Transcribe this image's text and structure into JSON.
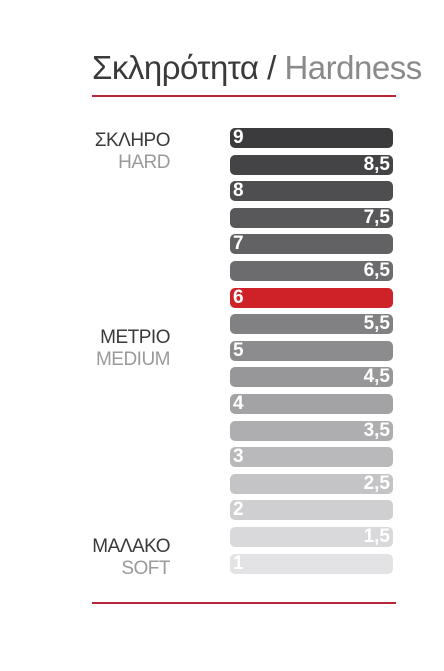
{
  "title": {
    "greek": "Σκληρότητα",
    "separator": "/",
    "latin": "Hardness"
  },
  "labels": {
    "hard": {
      "greek": "ΣΚΛΗΡΟ",
      "latin": "HARD"
    },
    "medium": {
      "greek": "ΜΕΤΡΙΟ",
      "latin": "MEDIUM"
    },
    "soft": {
      "greek": "ΜΑΛΑΚΟ",
      "latin": "SOFT"
    }
  },
  "chart_data": {
    "type": "table",
    "levels": [
      {
        "value": "9",
        "align": "left",
        "color": "#3b3b3d"
      },
      {
        "value": "8,5",
        "align": "right",
        "color": "#444446"
      },
      {
        "value": "8",
        "align": "left",
        "color": "#4e4e50"
      },
      {
        "value": "7,5",
        "align": "right",
        "color": "#58585a"
      },
      {
        "value": "7",
        "align": "left",
        "color": "#626264"
      },
      {
        "value": "6,5",
        "align": "right",
        "color": "#6c6c6e"
      },
      {
        "value": "6",
        "align": "left",
        "color": "#cf2128"
      },
      {
        "value": "5,5",
        "align": "right",
        "color": "#818183"
      },
      {
        "value": "5",
        "align": "left",
        "color": "#8c8c8e"
      },
      {
        "value": "4,5",
        "align": "right",
        "color": "#979799"
      },
      {
        "value": "4",
        "align": "left",
        "color": "#a3a3a5"
      },
      {
        "value": "3,5",
        "align": "right",
        "color": "#aeaeb0"
      },
      {
        "value": "3",
        "align": "left",
        "color": "#b9b9bb"
      },
      {
        "value": "2,5",
        "align": "right",
        "color": "#c4c4c6"
      },
      {
        "value": "2",
        "align": "left",
        "color": "#cfcfd1"
      },
      {
        "value": "1,5",
        "align": "right",
        "color": "#d9d9db"
      },
      {
        "value": "1",
        "align": "left",
        "color": "#e3e3e5"
      }
    ],
    "highlighted": "6",
    "accent_color": "#b8263a"
  }
}
